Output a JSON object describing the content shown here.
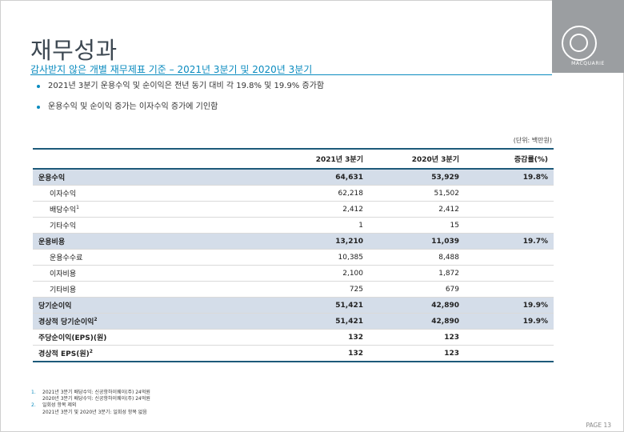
{
  "slide": {
    "title": "재무성과",
    "subtitle": "감사받지 않은 개별 재무제표 기준 – 2021년 3분기 및 2020년 3분기",
    "logo_text": "MACQUARIE",
    "page": "PAGE 13",
    "colors": {
      "accent": "#0a8bbf",
      "row_highlight": "#d4dde9",
      "logo_bg": "#9b9ea1",
      "rule": "#1d5a7a"
    }
  },
  "bullets": [
    "2021년 3분기 운용수익 및 순이익은 전년 동기 대비 각 19.8% 및 19.9% 증가함",
    "운용수익 및 순이익 증가는 이자수익 증가에 기인함"
  ],
  "table": {
    "unit": "(단위: 백만원)",
    "headers": [
      "",
      "2021년 3분기",
      "2020년 3분기",
      "증감률(%)"
    ],
    "rows": [
      {
        "label": "운용수익",
        "sup": "",
        "c2021": "64,631",
        "c2020": "53,929",
        "change": "19.8%"
      },
      {
        "label": "이자수익",
        "sup": "",
        "c2021": "62,218",
        "c2020": "51,502",
        "change": ""
      },
      {
        "label": "배당수익",
        "sup": "1",
        "c2021": "2,412",
        "c2020": "2,412",
        "change": ""
      },
      {
        "label": "기타수익",
        "sup": "",
        "c2021": "1",
        "c2020": "15",
        "change": ""
      },
      {
        "label": "운용비용",
        "sup": "",
        "c2021": "13,210",
        "c2020": "11,039",
        "change": "19.7%"
      },
      {
        "label": "운용수수료",
        "sup": "",
        "c2021": "10,385",
        "c2020": "8,488",
        "change": ""
      },
      {
        "label": "이자비용",
        "sup": "",
        "c2021": "2,100",
        "c2020": "1,872",
        "change": ""
      },
      {
        "label": "기타비용",
        "sup": "",
        "c2021": "725",
        "c2020": "679",
        "change": ""
      },
      {
        "label": "당기순이익",
        "sup": "",
        "c2021": "51,421",
        "c2020": "42,890",
        "change": "19.9%"
      },
      {
        "label": "경상적 당기순이익",
        "sup": "2",
        "c2021": "51,421",
        "c2020": "42,890",
        "change": "19.9%"
      },
      {
        "label": "주당순이익(EPS)(원)",
        "sup": "",
        "c2021": "132",
        "c2020": "123",
        "change": ""
      },
      {
        "label": "경상적 EPS(원)",
        "sup": "2",
        "c2021": "132",
        "c2020": "123",
        "change": ""
      }
    ]
  },
  "footnotes": [
    {
      "num": "1.",
      "lines": [
        "2021년 3분기 배당수익: 신공항하이웨이(주) 24억원",
        "2020년 3분기 배당수익: 신공항하이웨이(주) 24억원"
      ]
    },
    {
      "num": "2.",
      "lines": [
        "일회성 항목 제외",
        "2021년 3분기 및 2020년 3분기: 일회성 항목 없음"
      ]
    }
  ]
}
